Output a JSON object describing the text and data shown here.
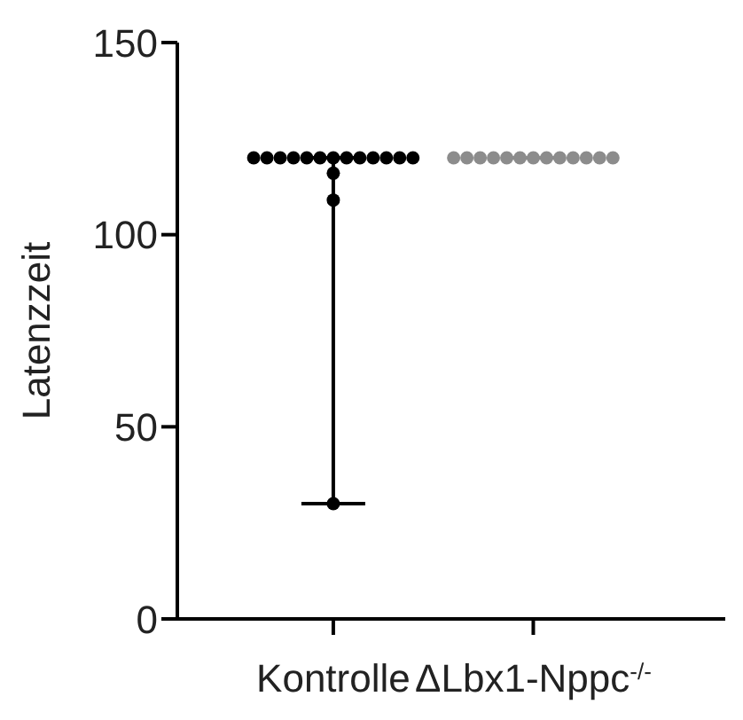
{
  "chart_data": {
    "type": "box",
    "ylabel": "Latenzzeit",
    "categories": [
      "Kontrolle",
      "ΔLbx1-Nppc$^{-/-}$"
    ],
    "ylim": [
      0,
      150
    ],
    "yticks": [
      0,
      50,
      100,
      150
    ],
    "grid": false,
    "legend": false,
    "boxes": [
      {
        "low": 30,
        "q1": 120,
        "median": 120,
        "q3": 120,
        "high": 120
      },
      {
        "low": 120,
        "q1": 120,
        "median": 120,
        "q3": 120,
        "high": 120
      }
    ],
    "colors": [
      "#000000",
      "#8c8c8c"
    ],
    "series": [
      {
        "type": "scatter",
        "marker": "circle",
        "color": "#000000",
        "x": [
          "Kontrolle",
          "Kontrolle",
          "Kontrolle",
          "Kontrolle",
          "Kontrolle",
          "Kontrolle",
          "Kontrolle",
          "Kontrolle",
          "Kontrolle",
          "Kontrolle",
          "Kontrolle",
          "Kontrolle",
          "Kontrolle",
          "Kontrolle",
          "Kontrolle",
          "Kontrolle"
        ],
        "values": [
          120,
          120,
          120,
          120,
          120,
          120,
          120,
          120,
          120,
          120,
          120,
          120,
          120,
          116,
          109,
          30
        ]
      },
      {
        "type": "scatter",
        "marker": "circle",
        "color": "#8c8c8c",
        "x": [
          "ΔLbx1-Nppc$^{-/-}$",
          "ΔLbx1-Nppc$^{-/-}$",
          "ΔLbx1-Nppc$^{-/-}$",
          "ΔLbx1-Nppc$^{-/-}$",
          "ΔLbx1-Nppc$^{-/-}$",
          "ΔLbx1-Nppc$^{-/-}$",
          "ΔLbx1-Nppc$^{-/-}$",
          "ΔLbx1-Nppc$^{-/-}$",
          "ΔLbx1-Nppc$^{-/-}$",
          "ΔLbx1-Nppc$^{-/-}$",
          "ΔLbx1-Nppc$^{-/-}$",
          "ΔLbx1-Nppc$^{-/-}$",
          "ΔLbx1-Nppc$^{-/-}$"
        ],
        "values": [
          120,
          120,
          120,
          120,
          120,
          120,
          120,
          120,
          120,
          120,
          120,
          120,
          120
        ]
      }
    ]
  }
}
